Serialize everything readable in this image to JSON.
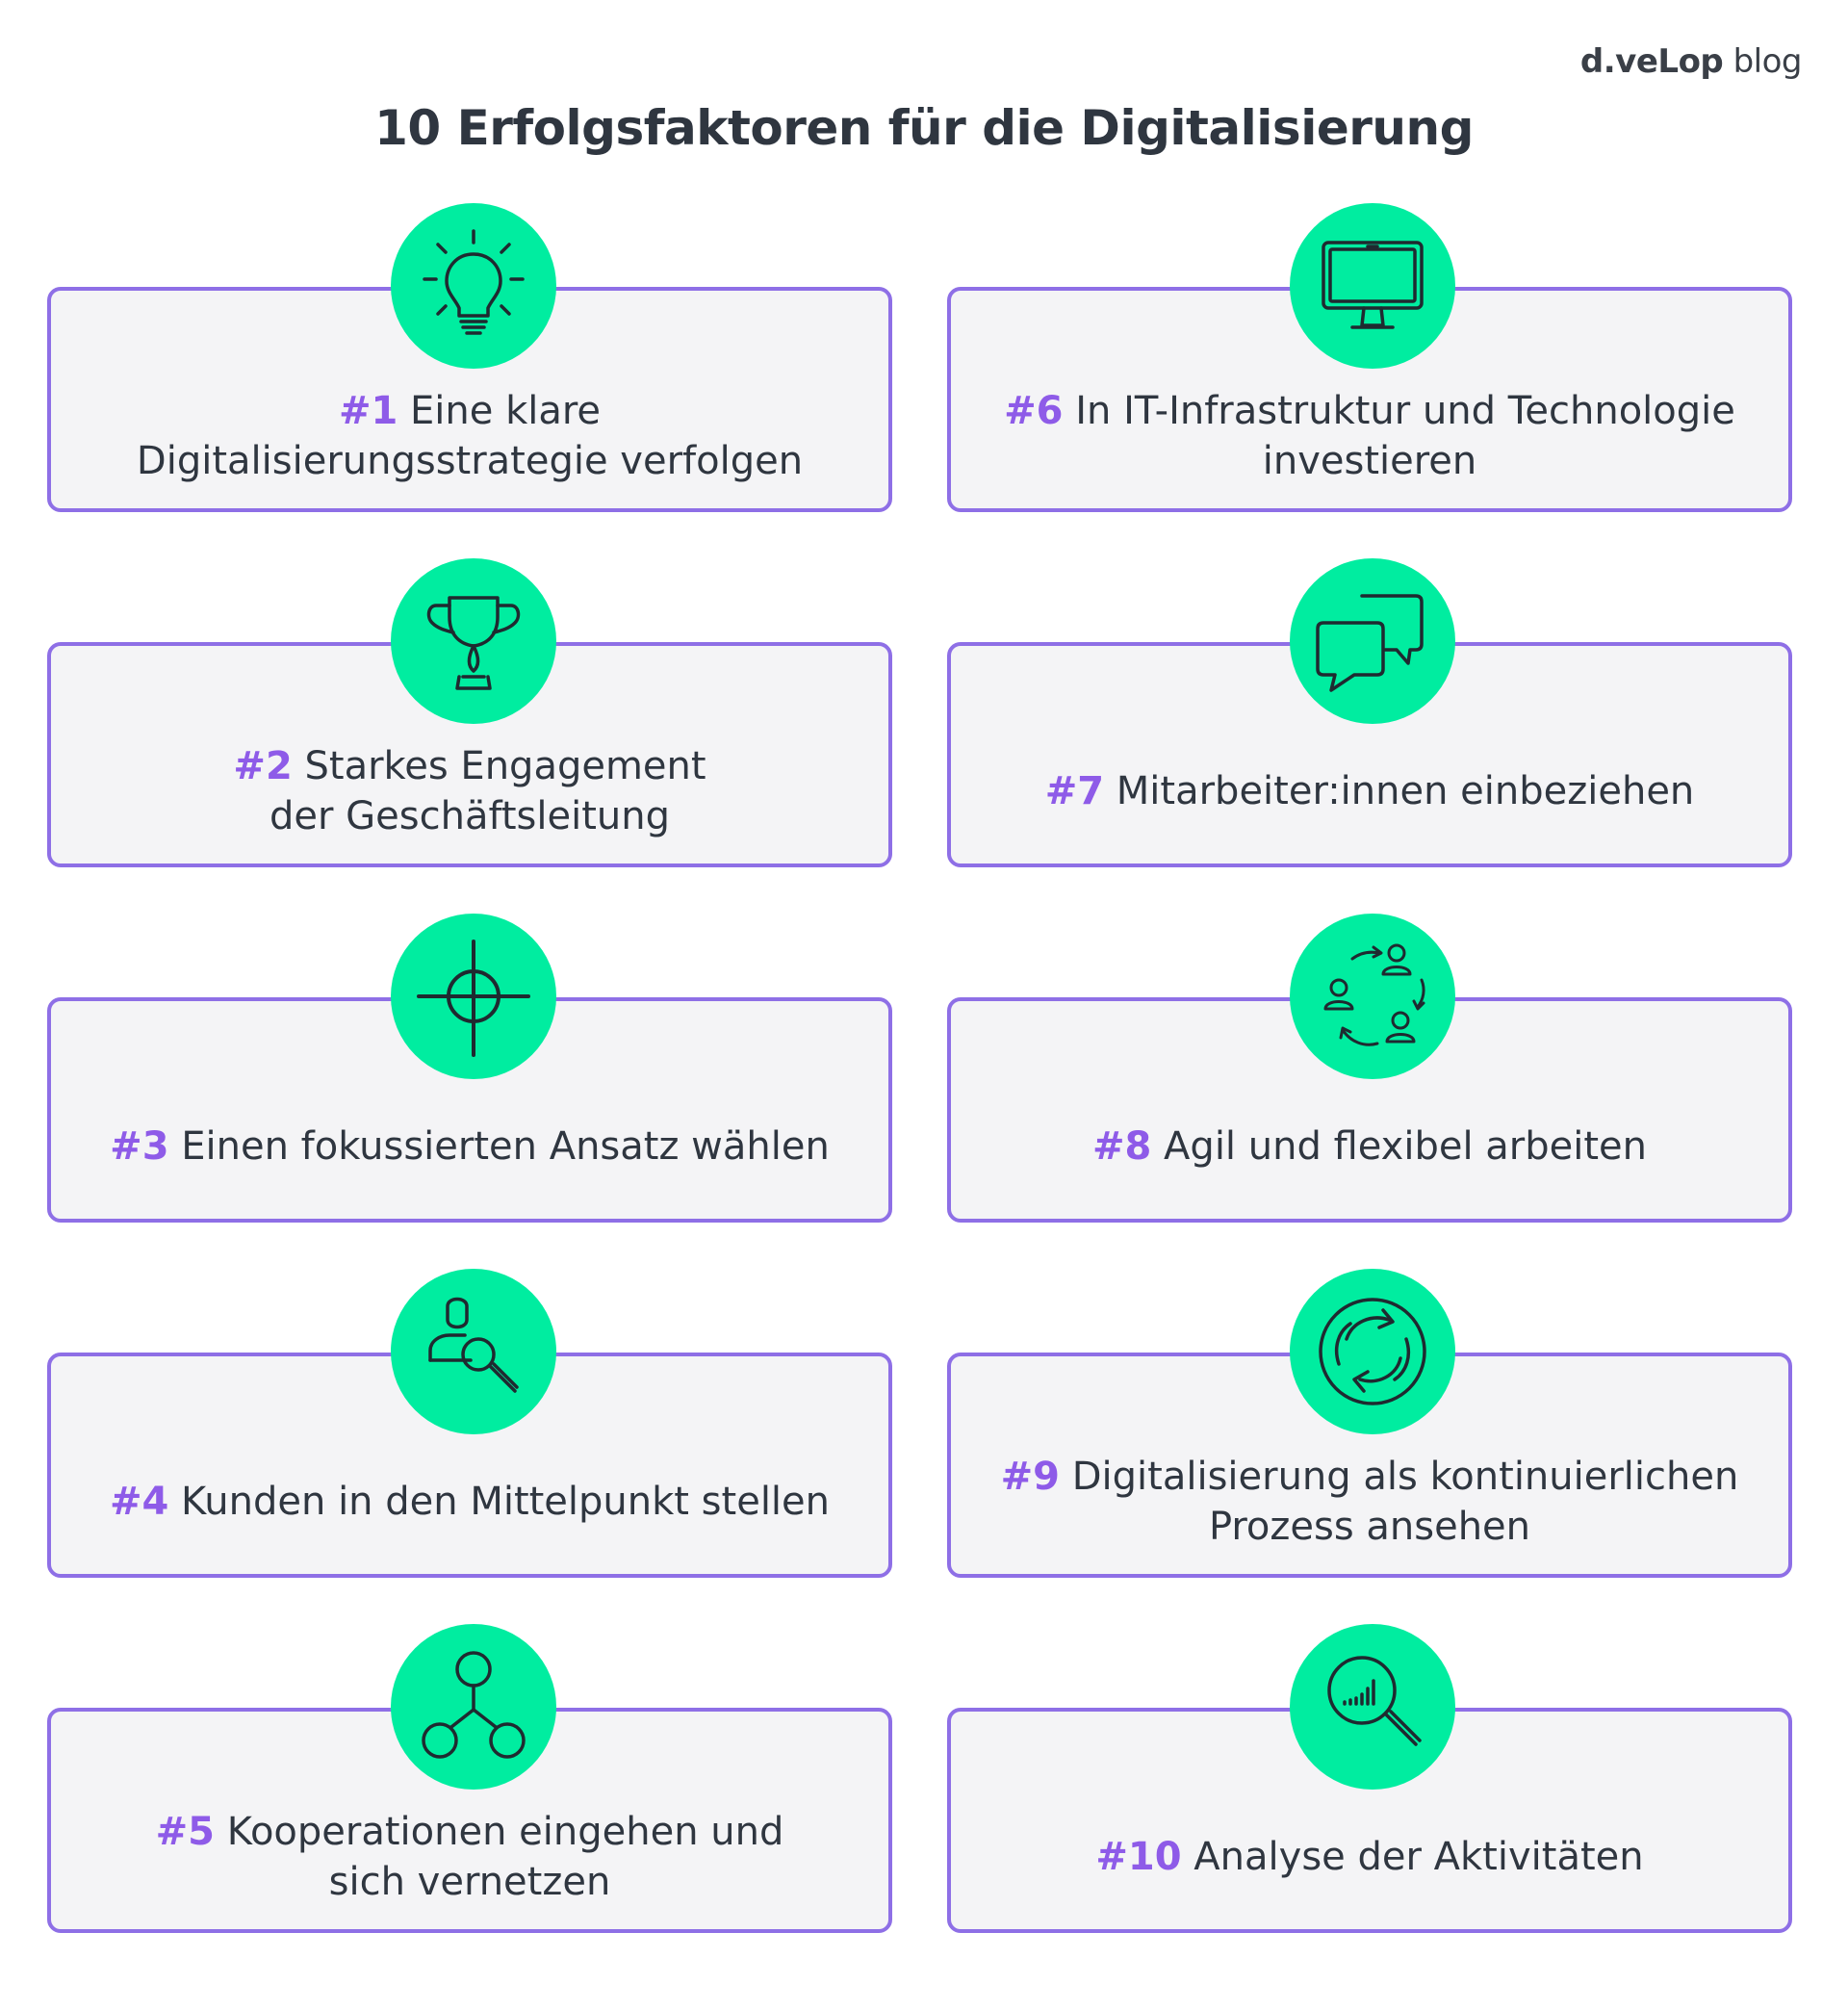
{
  "brand": {
    "strong": "d.veLop",
    "suffix": " blog"
  },
  "title": "10 Erfolgsfaktoren für die Digitalisierung",
  "colors": {
    "accent_green": "#00eda0",
    "accent_purple": "#8e6fe6",
    "card_bg": "#f4f4f6",
    "text": "#2f3640"
  },
  "factors": [
    {
      "num": "#1",
      "line1": " Eine klare",
      "line2": "Digitalisierungsstrategie verfolgen",
      "icon": "lightbulb-icon"
    },
    {
      "num": "#2",
      "line1": " Starkes Engagement",
      "line2": "der Geschäftsleitung",
      "icon": "trophy-icon"
    },
    {
      "num": "#3",
      "line1": " Einen fokussierten Ansatz wählen",
      "line2": "",
      "icon": "crosshair-icon"
    },
    {
      "num": "#4",
      "line1": " Kunden in den Mittelpunkt stellen",
      "line2": "",
      "icon": "customer-search-icon"
    },
    {
      "num": "#5",
      "line1": " Kooperationen eingehen und",
      "line2": "sich vernetzen",
      "icon": "network-icon"
    },
    {
      "num": "#6",
      "line1": " In IT-Infrastruktur und Technologie",
      "line2": "investieren",
      "icon": "monitor-icon"
    },
    {
      "num": "#7",
      "line1": " Mitarbeiter:innen einbeziehen",
      "line2": "",
      "icon": "chat-bubbles-icon"
    },
    {
      "num": "#8",
      "line1": " Agil und flexibel arbeiten",
      "line2": "",
      "icon": "people-cycle-icon"
    },
    {
      "num": "#9",
      "line1": " Digitalisierung als kontinuierlichen",
      "line2": "Prozess ansehen",
      "icon": "refresh-cycle-icon"
    },
    {
      "num": "#10",
      "line1": " Analyse der Aktivitäten",
      "line2": "",
      "icon": "analytics-magnifier-icon"
    }
  ]
}
